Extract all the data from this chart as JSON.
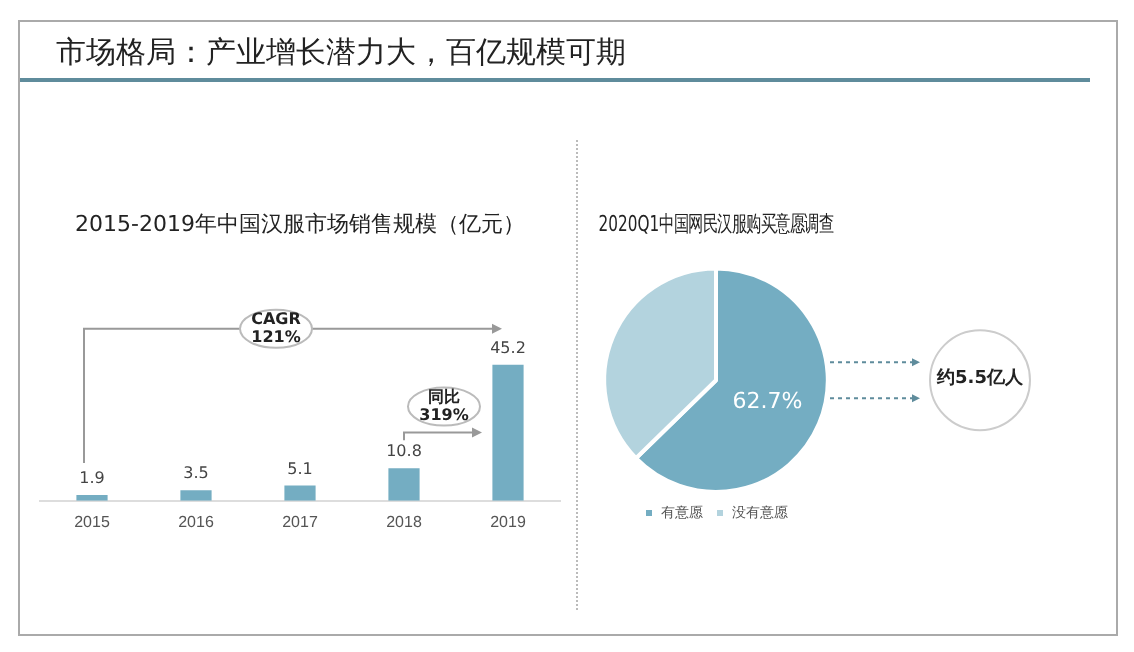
{
  "chart_data": [
    {
      "type": "other",
      "title": "市场格局：产业增长潜力大，百亿规模可期"
    },
    {
      "type": "bar",
      "title": "2015-2019年中国汉服市场销售规模（亿元）",
      "categories": [
        "2015",
        "2016",
        "2017",
        "2018",
        "2019"
      ],
      "values": [
        1.9,
        3.5,
        5.1,
        10.8,
        45.2
      ],
      "color": "#74adc2",
      "data_labels": true,
      "annotations": [
        "CAGR\n121%",
        "同比\n319%"
      ]
    },
    {
      "type": "pie",
      "title": "2020Q1中国网民汉服购买意愿调查",
      "categories": [
        "有意愿",
        "没有意愿"
      ],
      "values": [
        62.7,
        37.3
      ],
      "colors": [
        "#74adc2",
        "#b3d3de"
      ],
      "value_labels": [
        "62.7%",
        null
      ],
      "legend": "bottom",
      "annotations": [
        "约5.5亿人"
      ]
    }
  ]
}
